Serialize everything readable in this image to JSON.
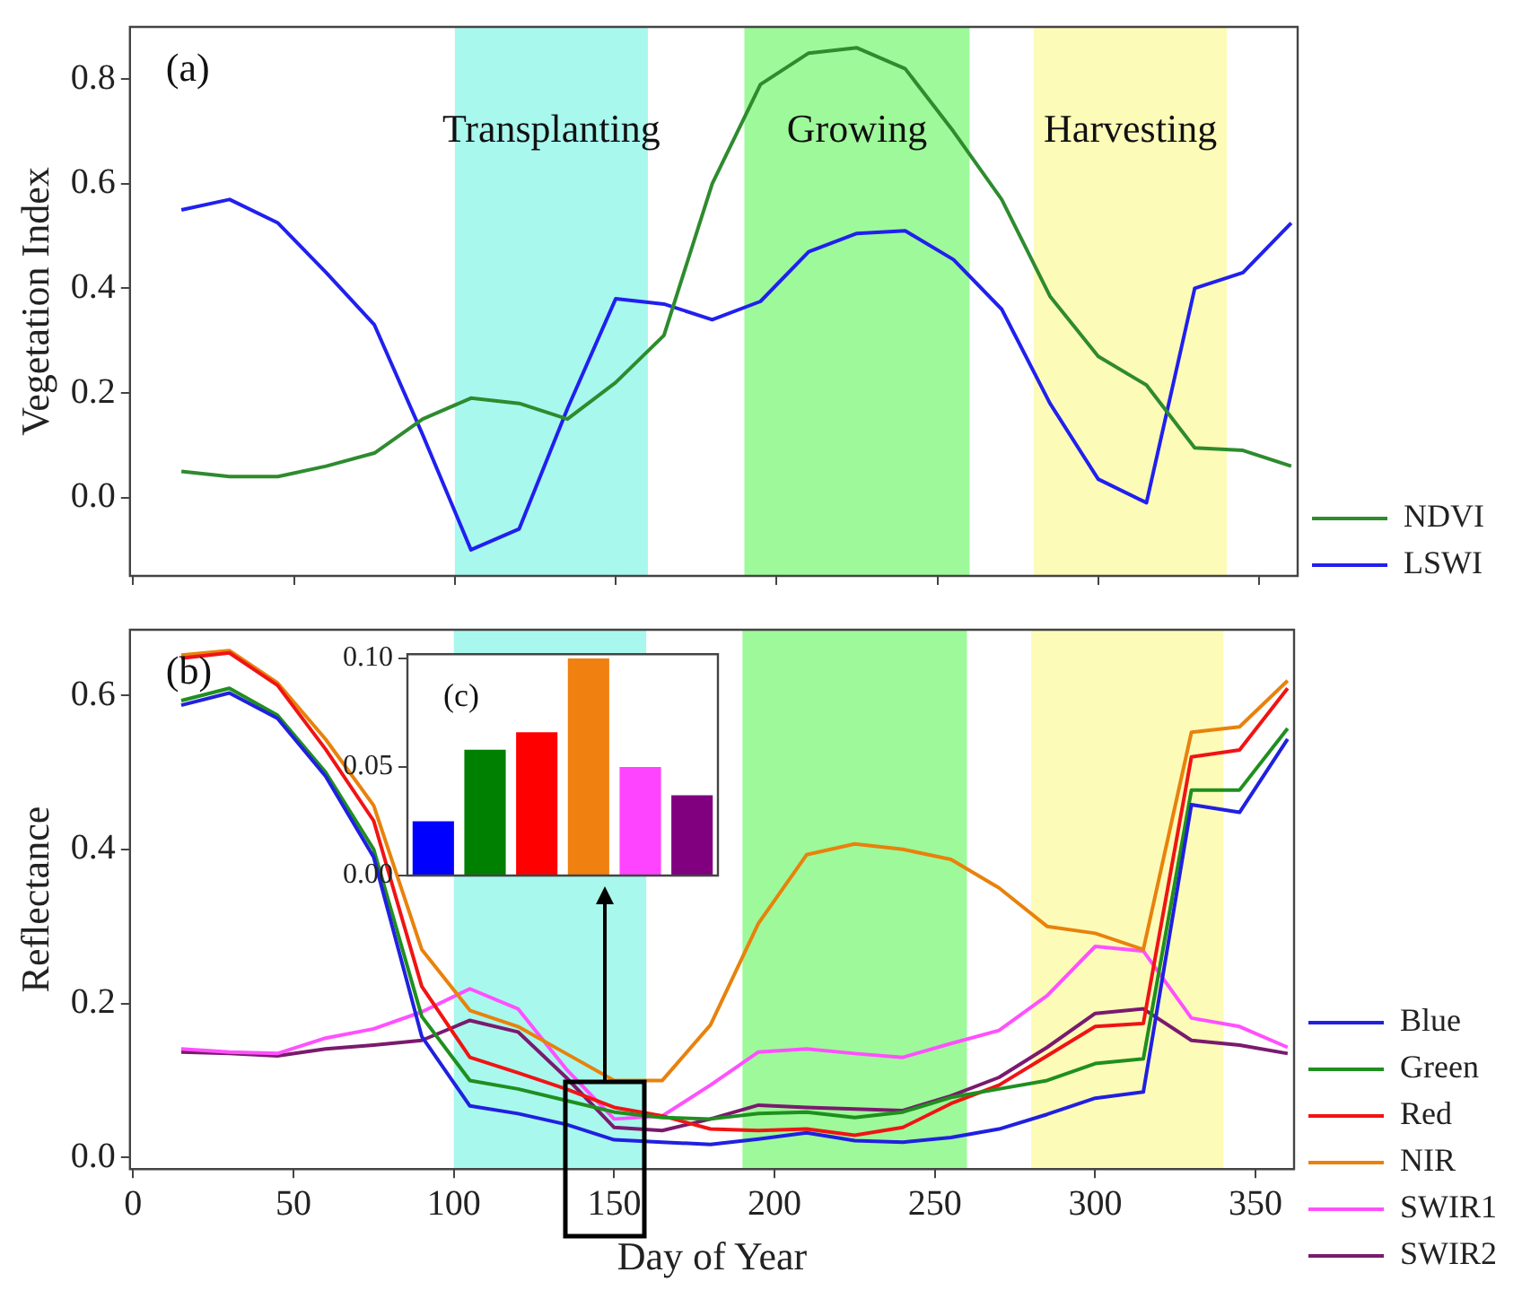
{
  "chart_data": [
    {
      "type": "line",
      "ylabel": "Vegetation Index",
      "annotations": [
        "(a)"
      ],
      "x": [
        15,
        30,
        45,
        60,
        75,
        90,
        105,
        120,
        135,
        150,
        165,
        180,
        195,
        210,
        225,
        240,
        255,
        270,
        285,
        300,
        315,
        330,
        345,
        360
      ],
      "series": [
        {
          "name": "NDVI",
          "color": "#2e8b2e",
          "values": [
            0.05,
            0.04,
            0.04,
            0.06,
            0.085,
            0.15,
            0.19,
            0.18,
            0.15,
            0.22,
            0.31,
            0.6,
            0.79,
            0.85,
            0.86,
            0.82,
            0.7,
            0.57,
            0.385,
            0.27,
            0.215,
            0.095,
            0.09,
            0.06
          ]
        },
        {
          "name": "LSWI",
          "color": "#2020ee",
          "values": [
            0.55,
            0.57,
            0.525,
            0.43,
            0.33,
            0.12,
            -0.1,
            -0.06,
            0.17,
            0.38,
            0.37,
            0.34,
            0.375,
            0.47,
            0.505,
            0.51,
            0.455,
            0.36,
            0.18,
            0.035,
            -0.01,
            0.4,
            0.43,
            0.525
          ]
        }
      ],
      "bands": [
        {
          "axis": "x",
          "from": 100,
          "to": 160,
          "label": "Transplanting",
          "color": "#a8f8ee"
        },
        {
          "axis": "x",
          "from": 190,
          "to": 260,
          "label": "Growing",
          "color": "#9ef99a"
        },
        {
          "axis": "x",
          "from": 280,
          "to": 340,
          "label": "Harvesting",
          "color": "#fdfbb8"
        }
      ],
      "xlim": [
        -1,
        362
      ],
      "xticks": [
        {
          "value": 0,
          "label": null
        },
        {
          "value": 50,
          "label": null
        },
        {
          "value": 100,
          "label": null
        },
        {
          "value": 150,
          "label": null
        },
        {
          "value": 200,
          "label": null
        },
        {
          "value": 250,
          "label": null
        },
        {
          "value": 300,
          "label": null
        },
        {
          "value": 350,
          "label": null
        }
      ],
      "ylim": [
        -0.15,
        0.9
      ],
      "yticks": [
        {
          "value": 0,
          "label": "0.0"
        },
        {
          "value": 0.2,
          "label": "0.2"
        },
        {
          "value": 0.4,
          "label": "0.4"
        },
        {
          "value": 0.6,
          "label": "0.6"
        },
        {
          "value": 0.8,
          "label": "0.8"
        }
      ],
      "tick_labels": "y",
      "legend": "right",
      "grid": false
    },
    {
      "type": "line",
      "xlabel": "Day of Year",
      "ylabel": "Reflectance",
      "annotations": [
        "(b)"
      ],
      "x": [
        15,
        30,
        45,
        60,
        75,
        90,
        105,
        120,
        135,
        150,
        165,
        180,
        195,
        210,
        225,
        240,
        255,
        270,
        285,
        300,
        315,
        330,
        345,
        360
      ],
      "series": [
        {
          "name": "Blue",
          "color": "#2020e0",
          "values": [
            0.587,
            0.603,
            0.57,
            0.495,
            0.39,
            0.157,
            0.067,
            0.057,
            0.043,
            0.023,
            0.02,
            0.017,
            0.024,
            0.032,
            0.022,
            0.02,
            0.026,
            0.037,
            0.056,
            0.077,
            0.085,
            0.458,
            0.448,
            0.543
          ]
        },
        {
          "name": "Green",
          "color": "#1f8f1f",
          "values": [
            0.593,
            0.609,
            0.574,
            0.5,
            0.4,
            0.183,
            0.1,
            0.089,
            0.074,
            0.059,
            0.052,
            0.05,
            0.057,
            0.059,
            0.052,
            0.059,
            0.078,
            0.089,
            0.1,
            0.122,
            0.128,
            0.477,
            0.477,
            0.557
          ]
        },
        {
          "name": "Red",
          "color": "#f01414",
          "values": [
            0.648,
            0.655,
            0.613,
            0.53,
            0.437,
            0.222,
            0.13,
            0.11,
            0.089,
            0.065,
            0.054,
            0.037,
            0.035,
            0.037,
            0.029,
            0.039,
            0.07,
            0.094,
            0.132,
            0.17,
            0.174,
            0.52,
            0.529,
            0.609
          ]
        },
        {
          "name": "NIR",
          "color": "#e8820c",
          "values": [
            0.652,
            0.658,
            0.616,
            0.543,
            0.457,
            0.27,
            0.191,
            0.17,
            0.135,
            0.1,
            0.1,
            0.172,
            0.304,
            0.393,
            0.407,
            0.4,
            0.387,
            0.35,
            0.3,
            0.291,
            0.27,
            0.552,
            0.559,
            0.619
          ]
        },
        {
          "name": "SWIR1",
          "color": "#ff50ff",
          "values": [
            0.141,
            0.137,
            0.135,
            0.155,
            0.167,
            0.189,
            0.219,
            0.193,
            0.115,
            0.05,
            0.054,
            0.094,
            0.137,
            0.141,
            0.135,
            0.13,
            0.148,
            0.165,
            0.21,
            0.274,
            0.268,
            0.181,
            0.17,
            0.143
          ]
        },
        {
          "name": "SWIR2",
          "color": "#7a1a6e",
          "values": [
            0.137,
            0.135,
            0.132,
            0.141,
            0.146,
            0.152,
            0.178,
            0.163,
            0.104,
            0.039,
            0.035,
            0.05,
            0.068,
            0.065,
            0.063,
            0.061,
            0.08,
            0.104,
            0.143,
            0.187,
            0.193,
            0.152,
            0.146,
            0.135
          ]
        }
      ],
      "bands": [
        {
          "axis": "x",
          "from": 100,
          "to": 160,
          "color": "#a8f8ee"
        },
        {
          "axis": "x",
          "from": 190,
          "to": 260,
          "color": "#9ef99a"
        },
        {
          "axis": "x",
          "from": 280,
          "to": 340,
          "color": "#fdfbb8"
        }
      ],
      "xlim": [
        -1,
        362
      ],
      "xticks": [
        0,
        50,
        100,
        150,
        200,
        250,
        300,
        350
      ],
      "ylim": [
        -0.015,
        0.685
      ],
      "yticks": [
        {
          "value": 0,
          "label": "0.0"
        },
        {
          "value": 0.2,
          "label": "0.2"
        },
        {
          "value": 0.4,
          "label": "0.4"
        },
        {
          "value": 0.6,
          "label": "0.6"
        }
      ],
      "legend": "right",
      "grid": false
    },
    {
      "type": "bar",
      "annotations": [
        "(c)"
      ],
      "categories": [
        null,
        null,
        null,
        null,
        null,
        null
      ],
      "values": [
        0.025,
        0.058,
        0.066,
        0.1,
        0.05,
        0.037
      ],
      "colors": [
        "#0000ff",
        "#008000",
        "#ff0000",
        "#f08010",
        "#ff44ff",
        "#800080"
      ],
      "ylim": [
        0,
        0.102
      ],
      "yticks": [
        {
          "value": 0,
          "label": "0.00"
        },
        {
          "value": 0.05,
          "label": "0.05"
        },
        {
          "value": 0.1,
          "label": "0.10"
        }
      ],
      "tick_labels": "y",
      "grid": false
    }
  ]
}
